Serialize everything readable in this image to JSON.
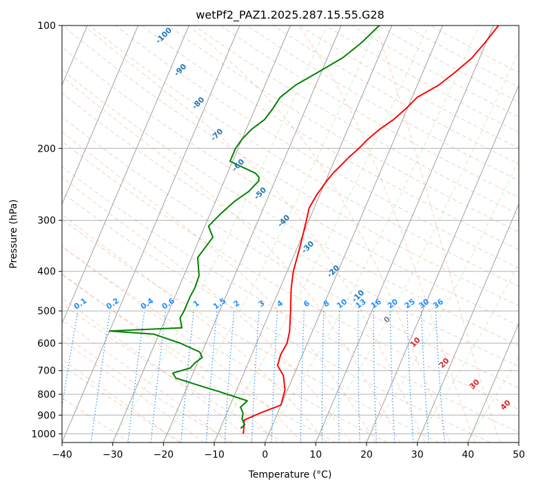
{
  "chart_data": {
    "type": "line",
    "title": "wetPf2_PAZ1.2025.287.15.55.G28",
    "xlabel": "Temperature (°C)",
    "ylabel": "Pressure (hPa)",
    "xlim": [
      -40,
      50
    ],
    "ylim": [
      1050,
      100
    ],
    "y_scale": "log",
    "grid": true,
    "x_ticks": [
      "−40",
      "−30",
      "−20",
      "−10",
      "0",
      "10",
      "20",
      "30",
      "40",
      "50"
    ],
    "x_tick_values": [
      -40,
      -30,
      -20,
      -10,
      0,
      10,
      20,
      30,
      40,
      50
    ],
    "y_ticks": [
      "100",
      "200",
      "300",
      "400",
      "500",
      "600",
      "700",
      "800",
      "900",
      "1000"
    ],
    "y_tick_values": [
      100,
      200,
      300,
      400,
      500,
      600,
      700,
      800,
      900,
      1000
    ],
    "series": [
      {
        "color": "#ff0000",
        "values": [
          [
            -5,
            1000
          ],
          [
            -5.5,
            960
          ],
          [
            -6,
            925
          ],
          [
            -3.5,
            890
          ],
          [
            0,
            850
          ],
          [
            -0.5,
            780
          ],
          [
            -2,
            720
          ],
          [
            -4,
            680
          ],
          [
            -4.3,
            640
          ],
          [
            -4,
            600
          ],
          [
            -4.5,
            560
          ],
          [
            -5,
            540
          ],
          [
            -6,
            500
          ],
          [
            -6.6,
            480
          ],
          [
            -7.8,
            440
          ],
          [
            -8.8,
            400
          ],
          [
            -9.5,
            350
          ],
          [
            -10.5,
            300
          ],
          [
            -11,
            280
          ],
          [
            -10.6,
            260
          ],
          [
            -9.8,
            240
          ],
          [
            -9.2,
            230
          ],
          [
            -7.4,
            210
          ],
          [
            -6.2,
            200
          ],
          [
            -5.2,
            190
          ],
          [
            -3.8,
            180
          ],
          [
            -1.8,
            170
          ],
          [
            -0.3,
            160
          ],
          [
            1,
            150
          ],
          [
            4.2,
            140
          ],
          [
            6.4,
            130
          ],
          [
            8.5,
            120
          ],
          [
            9.8,
            110
          ],
          [
            11,
            100
          ]
        ]
      },
      {
        "color": "#008000",
        "values": [
          [
            -6,
            970
          ],
          [
            -5.5,
            950
          ],
          [
            -6.5,
            920
          ],
          [
            -6.8,
            890
          ],
          [
            -7.8,
            860
          ],
          [
            -7,
            830
          ],
          [
            -13,
            790
          ],
          [
            -18,
            760
          ],
          [
            -23,
            730
          ],
          [
            -24,
            710
          ],
          [
            -21,
            690
          ],
          [
            -20.5,
            670
          ],
          [
            -19.5,
            650
          ],
          [
            -20.5,
            630
          ],
          [
            -25,
            600
          ],
          [
            -31,
            570
          ],
          [
            -40,
            560
          ],
          [
            -26,
            550
          ],
          [
            -27.2,
            520
          ],
          [
            -27,
            500
          ],
          [
            -27,
            460
          ],
          [
            -26.8,
            440
          ],
          [
            -27,
            410
          ],
          [
            -28.8,
            370
          ],
          [
            -27.5,
            330
          ],
          [
            -29.3,
            310
          ],
          [
            -28,
            290
          ],
          [
            -26.3,
            270
          ],
          [
            -24.3,
            255
          ],
          [
            -23.2,
            240
          ],
          [
            -23.5,
            235
          ],
          [
            -24.5,
            230
          ],
          [
            -30.5,
            215
          ],
          [
            -30.5,
            200
          ],
          [
            -30,
            190
          ],
          [
            -29,
            180
          ],
          [
            -27.2,
            170
          ],
          [
            -26.5,
            160
          ],
          [
            -26,
            150
          ],
          [
            -24,
            140
          ],
          [
            -20.6,
            130
          ],
          [
            -17,
            120
          ],
          [
            -14.5,
            110
          ],
          [
            -12.5,
            100
          ]
        ]
      }
    ],
    "isotherm_labels": [
      "-100",
      "-90",
      "-80",
      "-70",
      "-60",
      "-50",
      "-40",
      "-30",
      "-20",
      "-10"
    ],
    "mixing_ratio_labels": [
      "0.1",
      "0.2",
      "0.4",
      "0.6",
      "1",
      "1.5",
      "2",
      "3",
      "4",
      "6",
      "8",
      "10",
      "13",
      "16",
      "20",
      "25",
      "30",
      "36"
    ],
    "moist_adiabat_labels": [
      "0",
      "10",
      "20",
      "30",
      "40"
    ],
    "colors": {
      "temperature": "#ff0000",
      "dewpoint": "#008000",
      "isotherm_label": "#1f77b4",
      "mixing_ratio": "#1e90ff",
      "moist_adiabat_label": "#d62728",
      "zero_label": "#808080"
    }
  }
}
